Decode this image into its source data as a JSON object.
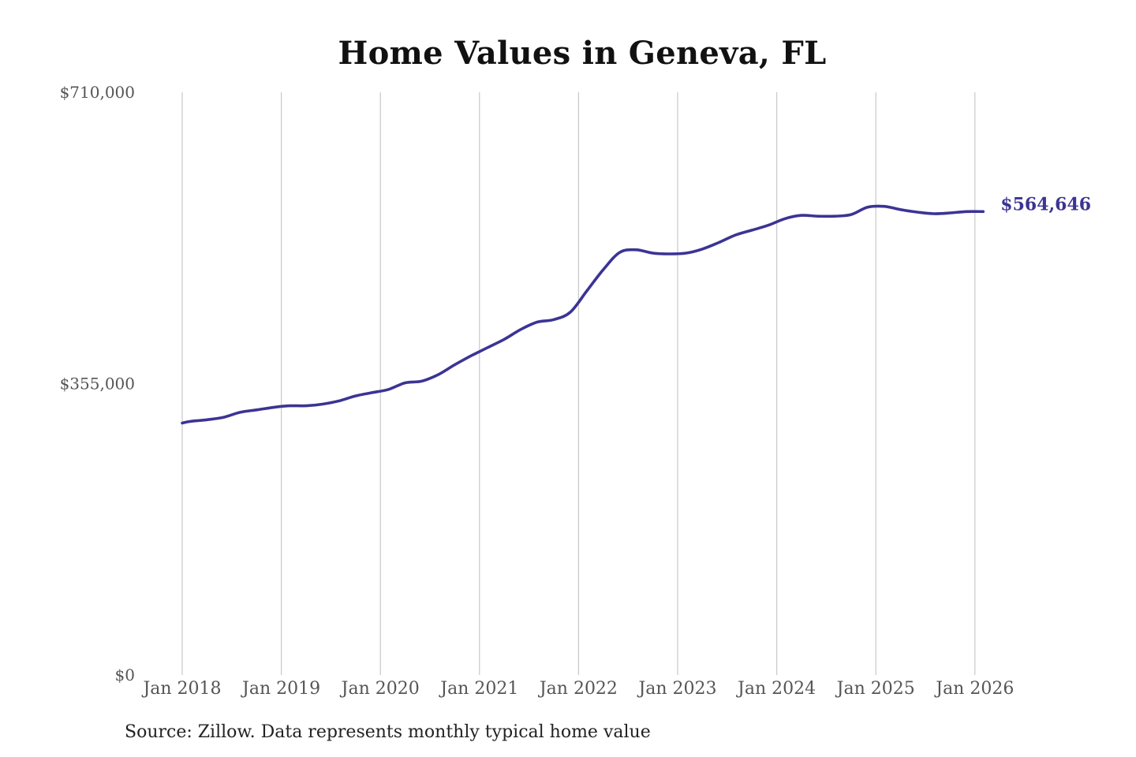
{
  "chart_data": {
    "type": "line",
    "title": "Home Values in Geneva, FL",
    "source": "Source: Zillow. Data represents monthly typical home value",
    "xlabel": "",
    "ylabel": "",
    "ylim": [
      0,
      710000
    ],
    "yticks": [
      {
        "value": 0,
        "label": "$0"
      },
      {
        "value": 355000,
        "label": "$355,000"
      },
      {
        "value": 710000,
        "label": "$710,000"
      }
    ],
    "xticks": [
      {
        "value": "2018-01",
        "label": "Jan 2018"
      },
      {
        "value": "2019-01",
        "label": "Jan 2019"
      },
      {
        "value": "2020-01",
        "label": "Jan 2020"
      },
      {
        "value": "2021-01",
        "label": "Jan 2021"
      },
      {
        "value": "2022-01",
        "label": "Jan 2022"
      },
      {
        "value": "2023-01",
        "label": "Jan 2023"
      },
      {
        "value": "2024-01",
        "label": "Jan 2024"
      },
      {
        "value": "2025-01",
        "label": "Jan 2025"
      },
      {
        "value": "2026-01",
        "label": "Jan 2026"
      }
    ],
    "grid": "vertical",
    "legend": "none",
    "line_color": "#3b3494",
    "grid_color": "#c8c8c8",
    "end_label": "$564,646",
    "series": [
      {
        "x": [
          "2018-01",
          "2018-02",
          "2018-04",
          "2018-06",
          "2018-08",
          "2018-10",
          "2018-12",
          "2019-02",
          "2019-04",
          "2019-06",
          "2019-08",
          "2019-10",
          "2019-12",
          "2020-02",
          "2020-04",
          "2020-06",
          "2020-08",
          "2020-10",
          "2020-12",
          "2021-02",
          "2021-04",
          "2021-06",
          "2021-08",
          "2021-10",
          "2021-12",
          "2022-02",
          "2022-04",
          "2022-06",
          "2022-08",
          "2022-10",
          "2022-12",
          "2023-02",
          "2023-04",
          "2023-06",
          "2023-08",
          "2023-10",
          "2023-12",
          "2024-02",
          "2024-04",
          "2024-06",
          "2024-08",
          "2024-10",
          "2024-12",
          "2025-02",
          "2025-04",
          "2025-06",
          "2025-08",
          "2025-10",
          "2025-12",
          "2026-02"
        ],
        "values": [
          307000,
          309000,
          311000,
          314000,
          320000,
          323000,
          326000,
          328000,
          328000,
          330000,
          334000,
          340000,
          344000,
          348000,
          356000,
          358000,
          366000,
          378000,
          389000,
          399000,
          409000,
          421000,
          430000,
          433000,
          442000,
          468000,
          494000,
          515000,
          518000,
          514000,
          513000,
          514000,
          519000,
          527000,
          536000,
          542000,
          548000,
          556000,
          560000,
          559000,
          559000,
          561000,
          570000,
          571000,
          567000,
          564000,
          562000,
          563000,
          564646,
          564646
        ]
      }
    ]
  }
}
